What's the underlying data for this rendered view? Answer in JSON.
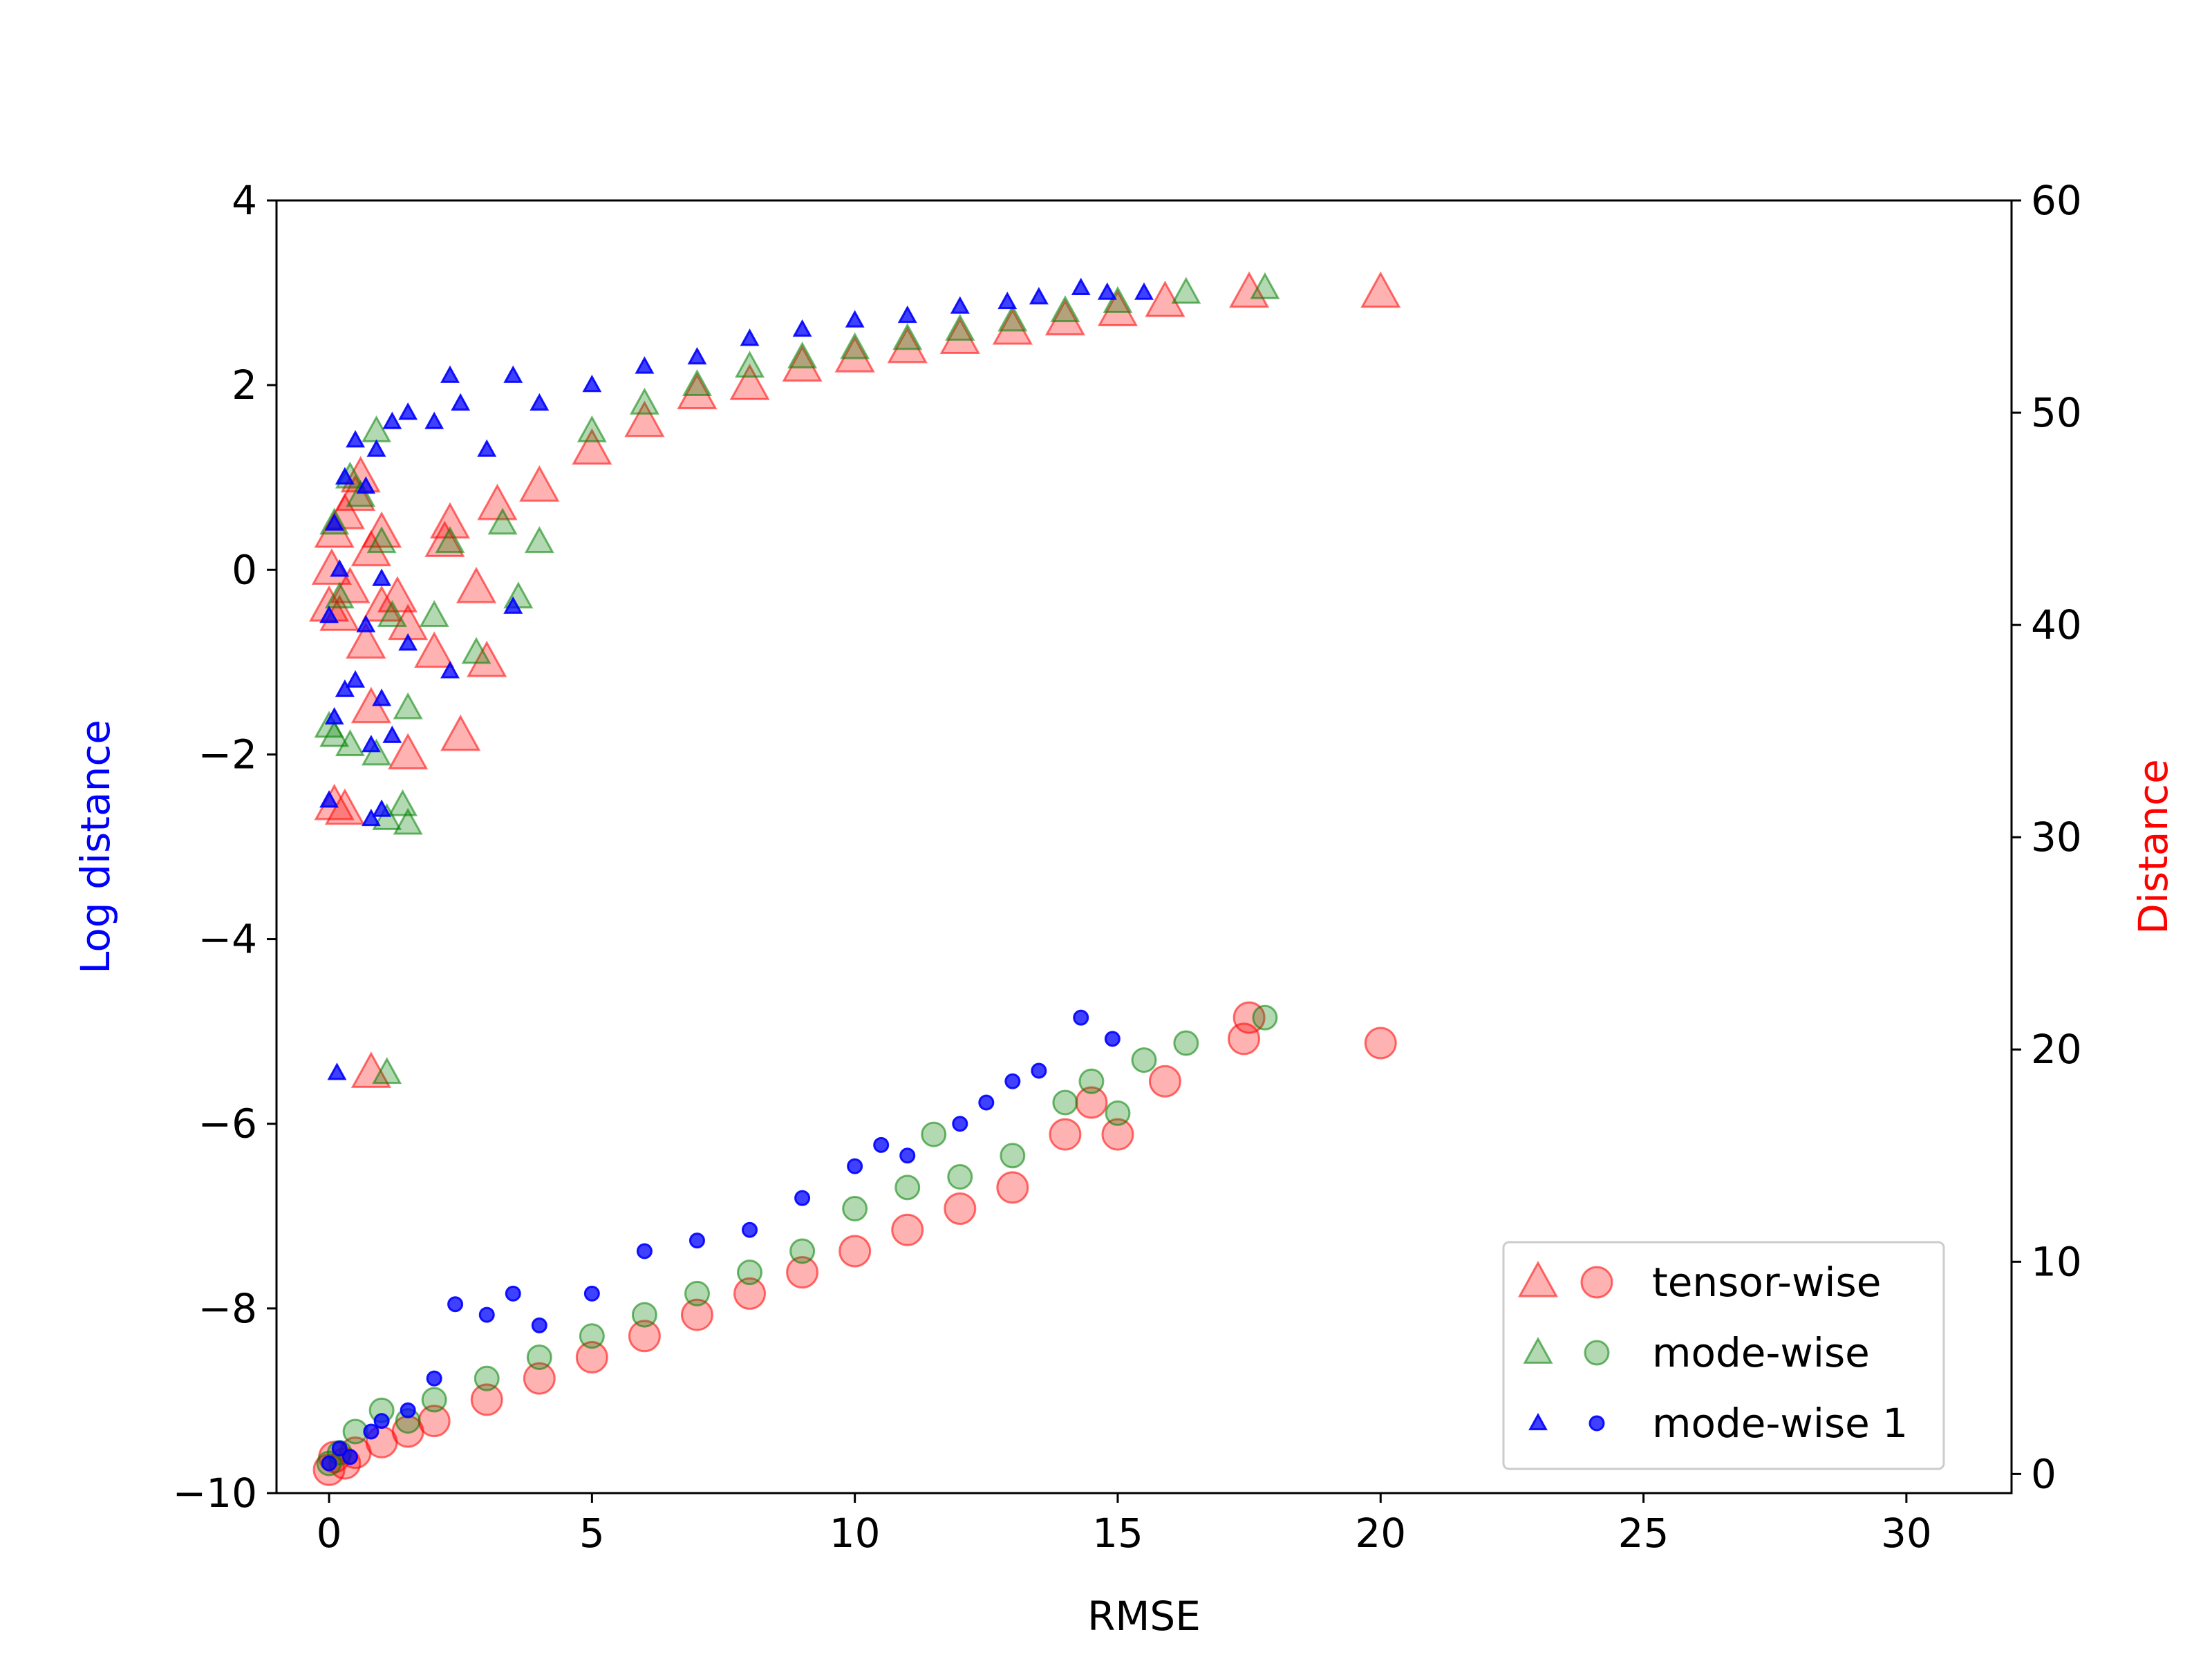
{
  "chart_data": {
    "type": "scatter",
    "title": "",
    "xlabel": "RMSE",
    "ylabel_left": "Log distance",
    "ylabel_right": "Distance",
    "xlim": [
      -1,
      32
    ],
    "ylim_left": [
      -10,
      4
    ],
    "ylim_right": [
      -0.9,
      60
    ],
    "x_ticks": [
      0,
      5,
      10,
      15,
      20,
      25,
      30
    ],
    "y_ticks_left": [
      -10,
      -8,
      -6,
      -4,
      -2,
      0,
      2,
      4
    ],
    "y_ticks_right": [
      0,
      10,
      20,
      30,
      40,
      50,
      60
    ],
    "x_tick_labels": [
      "0",
      "5",
      "10",
      "15",
      "20",
      "25",
      "30"
    ],
    "y_tick_labels_left": [
      "−10",
      "−8",
      "−6",
      "−4",
      "−2",
      "0",
      "2",
      "4"
    ],
    "y_tick_labels_right": [
      "0",
      "10",
      "20",
      "30",
      "40",
      "50",
      "60"
    ],
    "grid": false,
    "legend_position": "lower right",
    "markers_note": "triangles = Log distance (left axis); circles = Distance (right axis)",
    "series": [
      {
        "name": "tensor-wise",
        "color": "#ff0000",
        "log_distance": {
          "x": [
            0.0,
            0.05,
            0.1,
            0.2,
            0.3,
            0.4,
            0.5,
            0.6,
            0.8,
            1.0,
            1.3,
            1.5,
            2.0,
            2.3,
            2.5,
            3.0,
            3.2,
            0.8,
            1.5,
            2.2,
            2.8,
            0.1,
            0.3,
            0.7,
            1.0,
            4.0,
            5.0,
            6.0,
            7.0,
            8.0,
            9.0,
            10.0,
            11.0,
            12.0,
            13.0,
            14.0,
            15.0,
            15.9,
            17.5,
            20.0,
            0.8
          ],
          "y": [
            -0.4,
            0.0,
            0.4,
            -0.5,
            0.6,
            -0.2,
            0.8,
            1.0,
            0.2,
            0.4,
            -0.3,
            -0.6,
            -0.9,
            0.5,
            -1.8,
            -1.0,
            0.7,
            -1.5,
            -2.0,
            0.3,
            -0.2,
            -2.55,
            -2.6,
            -0.8,
            -0.4,
            0.9,
            1.3,
            1.6,
            1.9,
            2.0,
            2.2,
            2.3,
            2.4,
            2.5,
            2.6,
            2.7,
            2.8,
            2.9,
            3.0,
            3.0,
            -5.45
          ]
        },
        "distance": {
          "x": [
            0.0,
            0.1,
            0.3,
            0.5,
            1.0,
            1.5,
            2.0,
            3.0,
            4.0,
            5.0,
            6.0,
            7.0,
            8.0,
            9.0,
            10.0,
            11.0,
            12.0,
            13.0,
            14.0,
            14.5,
            15.0,
            15.9,
            17.5,
            17.4,
            20.0
          ],
          "y": [
            0.2,
            0.8,
            0.5,
            1.0,
            1.5,
            2.0,
            2.5,
            3.5,
            4.5,
            5.5,
            6.5,
            7.5,
            8.5,
            9.5,
            10.5,
            11.5,
            12.5,
            13.5,
            16.0,
            17.5,
            16.0,
            18.5,
            21.5,
            20.5,
            20.3
          ]
        }
      },
      {
        "name": "mode-wise",
        "color": "#008000",
        "log_distance": {
          "x": [
            0.0,
            0.1,
            0.2,
            0.4,
            0.6,
            0.9,
            1.0,
            1.2,
            1.5,
            2.0,
            2.3,
            2.8,
            3.3,
            3.6,
            4.0,
            0.1,
            0.4,
            0.9,
            1.4,
            1.1,
            1.5,
            5.0,
            6.0,
            7.0,
            8.0,
            9.0,
            10.0,
            11.0,
            12.0,
            13.0,
            14.0,
            15.0,
            16.3,
            17.8,
            1.1
          ],
          "y": [
            -1.7,
            0.5,
            -0.3,
            1.0,
            0.8,
            1.5,
            0.3,
            -0.5,
            -1.5,
            -0.5,
            0.3,
            -0.9,
            0.5,
            -0.3,
            0.3,
            -1.8,
            -1.9,
            -2.0,
            -2.55,
            -2.7,
            -2.75,
            1.5,
            1.8,
            2.0,
            2.2,
            2.3,
            2.4,
            2.5,
            2.6,
            2.7,
            2.8,
            2.9,
            3.0,
            3.05,
            -5.45
          ]
        },
        "distance": {
          "x": [
            0.0,
            0.2,
            0.5,
            1.0,
            1.5,
            2.0,
            3.0,
            4.0,
            5.0,
            6.0,
            7.0,
            8.0,
            9.0,
            10.0,
            11.0,
            11.5,
            12.0,
            13.0,
            14.0,
            14.5,
            15.0,
            15.5,
            16.3,
            17.8
          ],
          "y": [
            0.5,
            1.0,
            2.0,
            3.0,
            2.5,
            3.5,
            4.5,
            5.5,
            6.5,
            7.5,
            8.5,
            9.5,
            10.5,
            12.5,
            13.5,
            16.0,
            14.0,
            15.0,
            17.5,
            18.5,
            17.0,
            19.5,
            20.3,
            21.5
          ]
        }
      },
      {
        "name": "mode-wise 1",
        "color": "#0000ff",
        "log_distance": {
          "x": [
            0.0,
            0.1,
            0.2,
            0.3,
            0.5,
            0.7,
            0.9,
            1.0,
            1.2,
            1.5,
            2.0,
            2.3,
            2.5,
            3.0,
            3.5,
            4.0,
            0.1,
            0.3,
            0.5,
            0.8,
            1.0,
            1.2,
            0.7,
            1.5,
            2.3,
            3.5,
            0.0,
            0.8,
            1.0,
            5.0,
            6.0,
            7.0,
            8.0,
            9.0,
            10.0,
            11.0,
            12.0,
            12.9,
            13.5,
            14.3,
            14.8,
            15.5,
            0.15
          ],
          "y": [
            -0.5,
            0.5,
            0.0,
            1.0,
            1.4,
            0.9,
            1.3,
            -0.1,
            1.6,
            1.7,
            1.6,
            2.1,
            1.8,
            1.3,
            2.1,
            1.8,
            -1.6,
            -1.3,
            -1.2,
            -1.9,
            -1.4,
            -1.8,
            -0.6,
            -0.8,
            -1.1,
            -0.4,
            -2.5,
            -2.7,
            -2.6,
            2.0,
            2.2,
            2.3,
            2.5,
            2.6,
            2.7,
            2.75,
            2.85,
            2.9,
            2.95,
            3.05,
            3.0,
            3.0,
            -5.45
          ]
        },
        "distance": {
          "x": [
            0.0,
            0.2,
            0.4,
            0.8,
            1.0,
            1.5,
            2.0,
            2.4,
            3.0,
            3.5,
            4.0,
            5.0,
            6.0,
            7.0,
            8.0,
            9.0,
            10.0,
            10.5,
            11.0,
            12.0,
            12.5,
            13.0,
            13.5,
            14.3,
            14.9
          ],
          "y": [
            0.5,
            1.2,
            0.8,
            2.0,
            2.5,
            3.0,
            4.5,
            8.0,
            7.5,
            8.5,
            7.0,
            8.5,
            10.5,
            11.0,
            11.5,
            13.0,
            14.5,
            15.5,
            15.0,
            16.5,
            17.5,
            18.5,
            19.0,
            21.5,
            20.5
          ]
        }
      }
    ]
  }
}
